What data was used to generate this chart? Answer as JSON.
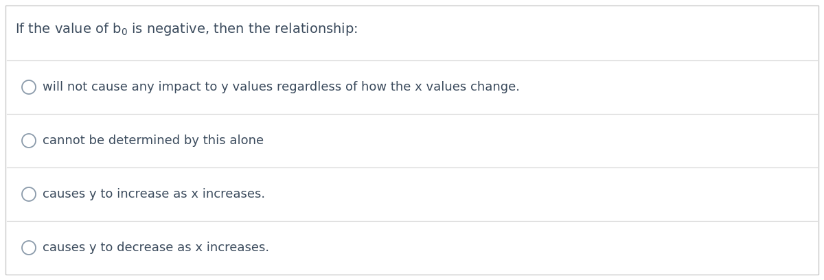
{
  "options": [
    "will not cause any impact to y values regardless of how the x values change.",
    "cannot be determined by this alone",
    "causes y to increase as x increases.",
    "causes y to decrease as x increases."
  ],
  "bg_color": "#ffffff",
  "border_color": "#c8c8c8",
  "text_color": "#3a4a5c",
  "circle_edge_color": "#8a9aaa",
  "line_color": "#d8d8d8",
  "title_fontsize": 14,
  "option_fontsize": 13
}
